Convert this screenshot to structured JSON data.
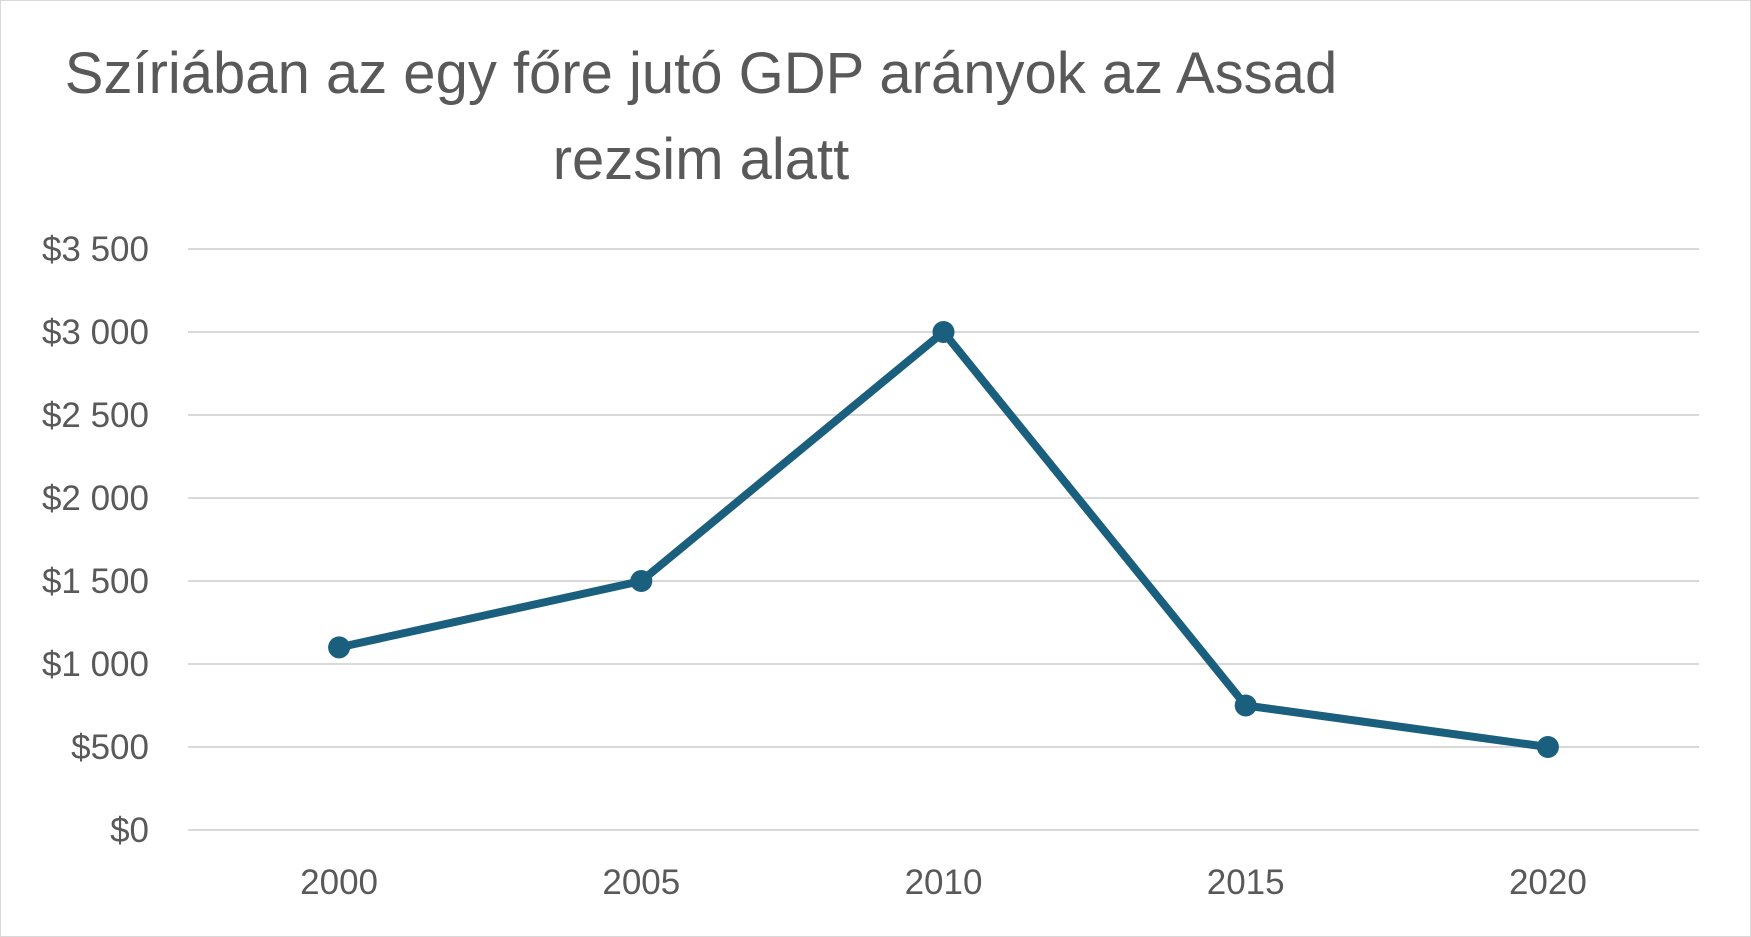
{
  "chart_data": {
    "type": "line",
    "title": "Szíriában az egy főre jutó GDP arányok az Assad rezsim alatt",
    "xlabel": "",
    "ylabel": "",
    "categories": [
      "2000",
      "2005",
      "2010",
      "2015",
      "2020"
    ],
    "series": [
      {
        "values": [
          1100,
          1500,
          3000,
          750,
          500
        ],
        "color": "#1b5f7e"
      }
    ],
    "ylim": [
      0,
      3500
    ],
    "y_ticks": [
      0,
      500,
      1000,
      1500,
      2000,
      2500,
      3000,
      3500
    ],
    "y_tick_labels": [
      "$0",
      "$500",
      "$1 000",
      "$1 500",
      "$2 000",
      "$2 500",
      "$3 000",
      "$3 500"
    ],
    "grid": true,
    "legend": "none",
    "colors": {
      "gridline": "#d9d9d9",
      "text": "#595959",
      "series": "#1b5f7e"
    }
  }
}
